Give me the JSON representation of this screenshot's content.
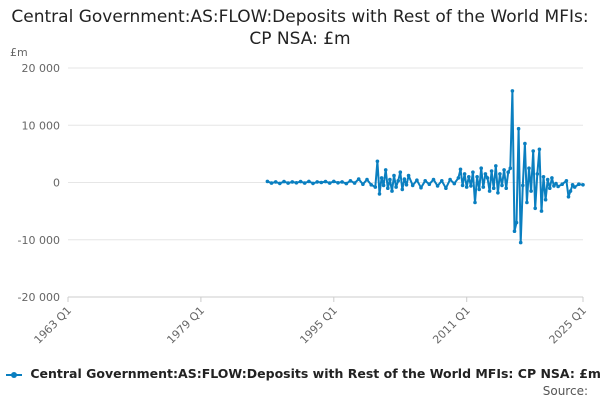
{
  "chart_data": {
    "type": "line",
    "title": "Central Government:AS:FLOW:Deposits with Rest of the World MFIs: CP NSA: £m",
    "ylabel": "£m",
    "xlabel": "",
    "ylim": [
      -20000,
      20000
    ],
    "yticks": [
      20000,
      10000,
      0,
      -10000,
      -20000
    ],
    "ytick_labels": [
      "20 000",
      "10 000",
      "0",
      "-10 000",
      "-20 000"
    ],
    "xlim": [
      1963,
      2025
    ],
    "xticks": [
      1963,
      1979,
      1995,
      2011,
      2025
    ],
    "xtick_labels": [
      "1963 Q1",
      "1979 Q1",
      "1995 Q1",
      "2011 Q1",
      "2025 Q1"
    ],
    "grid": true,
    "legend_position": "bottom",
    "color": "#0a7fc0",
    "series": [
      {
        "name": "Central Government:AS:FLOW:Deposits with Rest of the World MFIs: CP NSA: £m",
        "points": [
          [
            1987.0,
            200
          ],
          [
            1987.5,
            -100
          ],
          [
            1988.0,
            100
          ],
          [
            1988.5,
            -150
          ],
          [
            1989.0,
            150
          ],
          [
            1989.5,
            -100
          ],
          [
            1990.0,
            100
          ],
          [
            1990.5,
            -50
          ],
          [
            1991.0,
            150
          ],
          [
            1991.5,
            -100
          ],
          [
            1992.0,
            200
          ],
          [
            1992.5,
            -150
          ],
          [
            1993.0,
            100
          ],
          [
            1993.5,
            0
          ],
          [
            1994.0,
            150
          ],
          [
            1994.5,
            -100
          ],
          [
            1995.0,
            200
          ],
          [
            1995.5,
            -50
          ],
          [
            1996.0,
            100
          ],
          [
            1996.5,
            -200
          ],
          [
            1997.0,
            300
          ],
          [
            1997.5,
            -100
          ],
          [
            1998.0,
            600
          ],
          [
            1998.5,
            -300
          ],
          [
            1999.0,
            500
          ],
          [
            1999.5,
            -400
          ],
          [
            2000.0,
            -800
          ],
          [
            2000.25,
            3700
          ],
          [
            2000.5,
            -2000
          ],
          [
            2000.75,
            800
          ],
          [
            2001.0,
            -500
          ],
          [
            2001.25,
            2200
          ],
          [
            2001.5,
            -1000
          ],
          [
            2001.75,
            500
          ],
          [
            2002.0,
            -1500
          ],
          [
            2002.25,
            1200
          ],
          [
            2002.5,
            -800
          ],
          [
            2002.75,
            300
          ],
          [
            2003.0,
            1800
          ],
          [
            2003.25,
            -1200
          ],
          [
            2003.5,
            600
          ],
          [
            2003.75,
            -400
          ],
          [
            2004.0,
            1200
          ],
          [
            2004.5,
            -500
          ],
          [
            2005.0,
            400
          ],
          [
            2005.5,
            -900
          ],
          [
            2006.0,
            300
          ],
          [
            2006.5,
            -300
          ],
          [
            2007.0,
            500
          ],
          [
            2007.5,
            -600
          ],
          [
            2008.0,
            300
          ],
          [
            2008.5,
            -1000
          ],
          [
            2009.0,
            500
          ],
          [
            2009.5,
            -200
          ],
          [
            2010.0,
            800
          ],
          [
            2010.25,
            2300
          ],
          [
            2010.5,
            -500
          ],
          [
            2010.75,
            1500
          ],
          [
            2011.0,
            -800
          ],
          [
            2011.25,
            1000
          ],
          [
            2011.5,
            -600
          ],
          [
            2011.75,
            1800
          ],
          [
            2012.0,
            -3500
          ],
          [
            2012.25,
            1000
          ],
          [
            2012.5,
            -1200
          ],
          [
            2012.75,
            2500
          ],
          [
            2013.0,
            -800
          ],
          [
            2013.25,
            1500
          ],
          [
            2013.5,
            800
          ],
          [
            2013.75,
            -1500
          ],
          [
            2014.0,
            2000
          ],
          [
            2014.25,
            -1000
          ],
          [
            2014.5,
            2900
          ],
          [
            2014.75,
            -1800
          ],
          [
            2015.0,
            1500
          ],
          [
            2015.25,
            -500
          ],
          [
            2015.5,
            2200
          ],
          [
            2015.75,
            -1000
          ],
          [
            2016.0,
            1800
          ],
          [
            2016.25,
            2500
          ],
          [
            2016.5,
            16000
          ],
          [
            2016.75,
            -8500
          ],
          [
            2017.0,
            -7000
          ],
          [
            2017.25,
            9400
          ],
          [
            2017.5,
            -10500
          ],
          [
            2017.75,
            -500
          ],
          [
            2018.0,
            6800
          ],
          [
            2018.25,
            -3500
          ],
          [
            2018.5,
            2500
          ],
          [
            2018.75,
            -1500
          ],
          [
            2019.0,
            5500
          ],
          [
            2019.25,
            -4500
          ],
          [
            2019.5,
            1500
          ],
          [
            2019.75,
            5800
          ],
          [
            2020.0,
            -5000
          ],
          [
            2020.25,
            1000
          ],
          [
            2020.5,
            -3000
          ],
          [
            2020.75,
            500
          ],
          [
            2021.0,
            -1000
          ],
          [
            2021.25,
            800
          ],
          [
            2021.5,
            -600
          ],
          [
            2021.75,
            -200
          ],
          [
            2022.0,
            -700
          ],
          [
            2022.5,
            -300
          ],
          [
            2023.0,
            300
          ],
          [
            2023.25,
            -2500
          ],
          [
            2023.5,
            -1500
          ],
          [
            2023.75,
            -400
          ],
          [
            2024.0,
            -800
          ],
          [
            2024.5,
            -300
          ],
          [
            2025.0,
            -400
          ]
        ]
      }
    ]
  },
  "footer": {
    "source_label": "Source:"
  }
}
